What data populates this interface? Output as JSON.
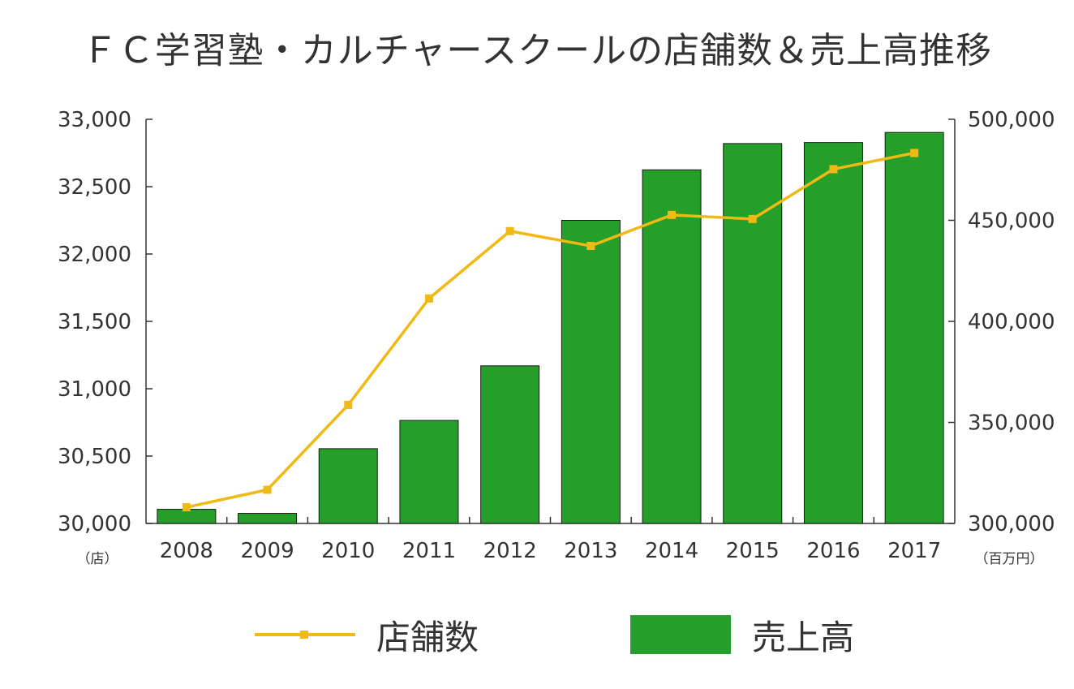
{
  "title": "ＦＣ学習塾・カルチャースクールの店舗数＆売上高推移",
  "colors": {
    "bar": "#259e2a",
    "bar_stroke": "#1a1a1a",
    "line": "#f0b913",
    "axis": "#333333",
    "text": "#333333"
  },
  "legend": {
    "line_label": "店舗数",
    "bar_label": "売上高"
  },
  "chart_data": {
    "type": "bar+line",
    "title": "ＦＣ学習塾・カルチャースクールの店舗数＆売上高推移",
    "categories": [
      "2008",
      "2009",
      "2010",
      "2011",
      "2012",
      "2013",
      "2014",
      "2015",
      "2016",
      "2017"
    ],
    "left_axis": {
      "unit": "（店）",
      "ylim": [
        30000,
        33000
      ],
      "ticks": [
        30000,
        30500,
        31000,
        31500,
        32000,
        32500,
        33000
      ],
      "tick_labels": [
        "30,000",
        "30,500",
        "31,000",
        "31,500",
        "32,000",
        "32,500",
        "33,000"
      ]
    },
    "right_axis": {
      "unit": "（百万円）",
      "ylim": [
        300000,
        500000
      ],
      "ticks": [
        300000,
        350000,
        400000,
        450000,
        500000
      ],
      "tick_labels": [
        "300,000",
        "350,000",
        "400,000",
        "450,000",
        "500,000"
      ]
    },
    "series": [
      {
        "name": "売上高",
        "type": "bar",
        "axis": "right",
        "values": [
          307000,
          305000,
          337000,
          351000,
          378000,
          450000,
          475000,
          488000,
          488500,
          493500
        ]
      },
      {
        "name": "店舗数",
        "type": "line",
        "axis": "left",
        "values": [
          30120,
          30250,
          30880,
          31670,
          32170,
          32060,
          32290,
          32260,
          32630,
          32750
        ]
      }
    ],
    "grid": false,
    "legend_position": "bottom"
  }
}
